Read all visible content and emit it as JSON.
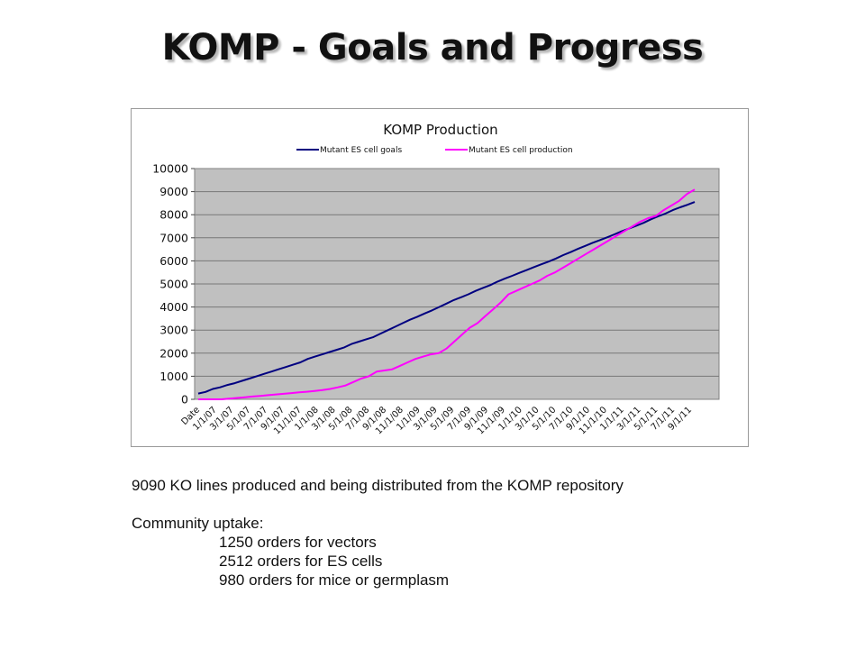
{
  "slide": {
    "title": "KOMP - Goals and Progress"
  },
  "chart_data": {
    "type": "line",
    "title": "KOMP Production",
    "xlabel": "",
    "ylabel": "",
    "ylim": [
      0,
      10000
    ],
    "yticks": [
      0,
      1000,
      2000,
      3000,
      4000,
      5000,
      6000,
      7000,
      8000,
      9000,
      10000
    ],
    "grid": true,
    "legend_position": "top",
    "xtick_labels": [
      "Date",
      "1/1/07",
      "3/1/07",
      "5/1/07",
      "7/1/07",
      "9/1/07",
      "11/1/07",
      "1/1/08",
      "3/1/08",
      "5/1/08",
      "7/1/08",
      "9/1/08",
      "11/1/08",
      "1/1/09",
      "3/1/09",
      "5/1/09",
      "7/1/09",
      "9/1/09",
      "11/1/09",
      "1/1/10",
      "3/1/10",
      "5/1/10",
      "7/1/10",
      "9/1/10",
      "11/1/10",
      "1/1/11",
      "3/1/11",
      "5/1/11",
      "7/1/11",
      "9/1/11"
    ],
    "series": [
      {
        "name": "Mutant ES cell goals",
        "color": "#000080",
        "values": [
          250,
          320,
          450,
          520,
          620,
          700,
          800,
          900,
          1000,
          1100,
          1200,
          1300,
          1400,
          1500,
          1600,
          1750,
          1850,
          1950,
          2050,
          2150,
          2250,
          2400,
          2500,
          2600,
          2700,
          2850,
          3000,
          3150,
          3300,
          3450,
          3580,
          3720,
          3850,
          4000,
          4150,
          4300,
          4420,
          4550,
          4700,
          4830,
          4950,
          5100,
          5230,
          5350,
          5480,
          5600,
          5730,
          5850,
          5970,
          6100,
          6250,
          6380,
          6520,
          6650,
          6780,
          6900,
          7020,
          7150,
          7280,
          7400,
          7520,
          7650,
          7800,
          7930,
          8050,
          8200,
          8320,
          8430,
          8550
        ]
      },
      {
        "name": "Mutant ES cell production",
        "color": "#FF00FF",
        "values": [
          0,
          0,
          0,
          0,
          30,
          60,
          90,
          120,
          150,
          180,
          210,
          240,
          270,
          300,
          330,
          360,
          400,
          450,
          520,
          600,
          750,
          900,
          1000,
          1200,
          1250,
          1300,
          1450,
          1600,
          1750,
          1850,
          1950,
          2000,
          2200,
          2500,
          2800,
          3100,
          3300,
          3600,
          3900,
          4200,
          4550,
          4700,
          4850,
          5000,
          5150,
          5350,
          5500,
          5700,
          5900,
          6100,
          6300,
          6500,
          6700,
          6900,
          7100,
          7300,
          7500,
          7700,
          7850,
          7950,
          8200,
          8400,
          8600,
          8900,
          9090
        ]
      }
    ]
  },
  "text": {
    "summary": "9090 KO lines produced and being distributed from the KOMP repository",
    "uptake_heading": "Community uptake:",
    "uptake_items": [
      "1250 orders for vectors",
      "2512 orders for ES cells",
      "980 orders for mice or germplasm"
    ]
  }
}
